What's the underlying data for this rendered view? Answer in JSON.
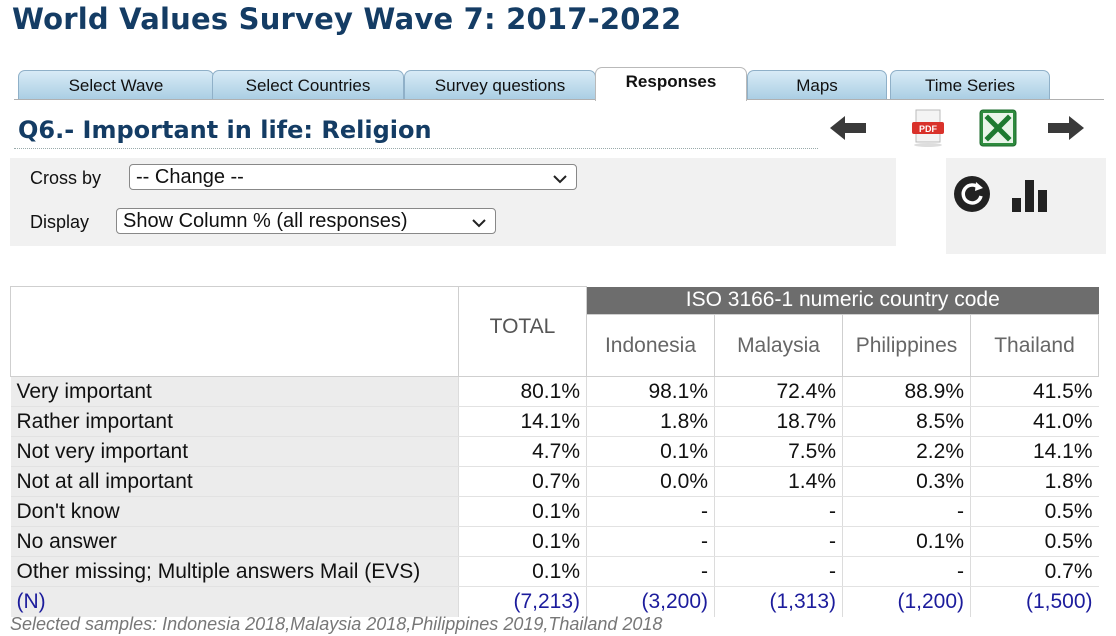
{
  "page": {
    "title": "World Values Survey Wave 7: 2017-2022"
  },
  "tabs": [
    {
      "label": "Select Wave",
      "active": false
    },
    {
      "label": "Select Countries",
      "active": false
    },
    {
      "label": "Survey questions",
      "active": false
    },
    {
      "label": "Responses",
      "active": true
    },
    {
      "label": "Maps",
      "active": false
    },
    {
      "label": "Time Series",
      "active": false
    }
  ],
  "question": {
    "title": "Q6.- Important in life: Religion"
  },
  "icons": [
    "arrow-left-icon",
    "pdf-icon",
    "excel-icon",
    "arrow-right-icon",
    "refresh-icon",
    "bar-chart-icon"
  ],
  "filters": {
    "cross_by_label": "Cross by",
    "cross_by_value": "-- Change --",
    "display_label": "Display",
    "display_value": "Show Column % (all responses)"
  },
  "table": {
    "total_header": "TOTAL",
    "group_header": "ISO 3166-1 numeric country code",
    "countries": [
      "Indonesia",
      "Malaysia",
      "Philippines",
      "Thailand"
    ],
    "rows": [
      {
        "label": "Very important",
        "values": [
          "80.1%",
          "98.1%",
          "72.4%",
          "88.9%",
          "41.5%"
        ]
      },
      {
        "label": "Rather important",
        "values": [
          "14.1%",
          "1.8%",
          "18.7%",
          "8.5%",
          "41.0%"
        ]
      },
      {
        "label": "Not very important",
        "values": [
          "4.7%",
          "0.1%",
          "7.5%",
          "2.2%",
          "14.1%"
        ]
      },
      {
        "label": "Not at all important",
        "values": [
          "0.7%",
          "0.0%",
          "1.4%",
          "0.3%",
          "1.8%"
        ]
      },
      {
        "label": "Don't know",
        "values": [
          "0.1%",
          "-",
          "-",
          "-",
          "0.5%"
        ]
      },
      {
        "label": "No answer",
        "values": [
          "0.1%",
          "-",
          "-",
          "0.1%",
          "0.5%"
        ]
      },
      {
        "label": "Other missing; Multiple answers Mail (EVS)",
        "values": [
          "0.1%",
          "-",
          "-",
          "-",
          "0.7%"
        ]
      }
    ],
    "n_row": {
      "label": "(N)",
      "values": [
        "(7,213)",
        "(3,200)",
        "(1,313)",
        "(1,200)",
        "(1,500)"
      ]
    }
  },
  "footnote": "Selected samples: Indonesia 2018,Malaysia 2018,Philippines 2019,Thailand 2018",
  "colors": {
    "title": "#143c64",
    "tab_gradient_top": "#d8ebf6",
    "tab_gradient_bottom": "#a9cde3",
    "group_header_bg": "#6d6d6d",
    "n_row_text": "#1c1c9c"
  }
}
